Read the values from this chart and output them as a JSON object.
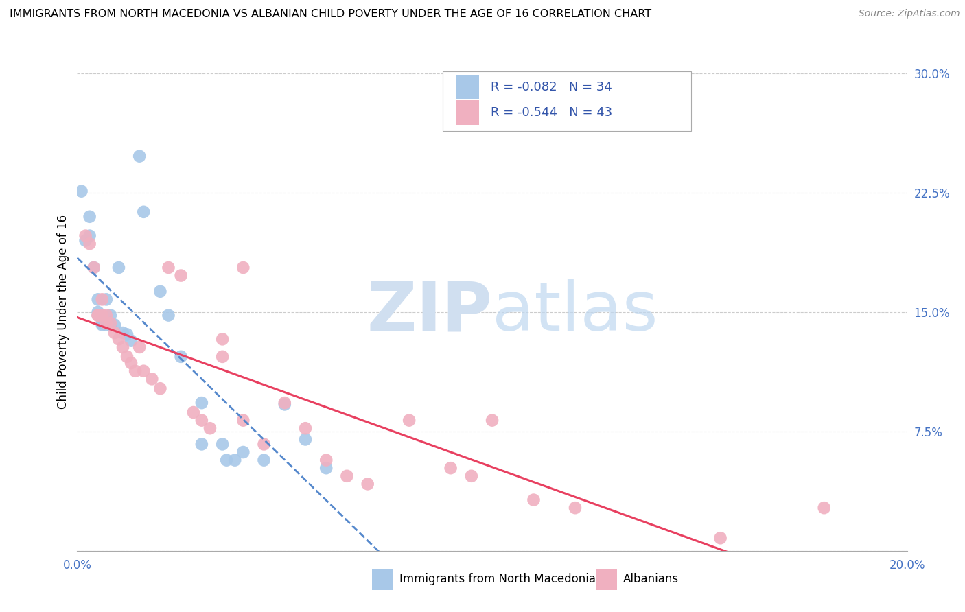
{
  "title": "IMMIGRANTS FROM NORTH MACEDONIA VS ALBANIAN CHILD POVERTY UNDER THE AGE OF 16 CORRELATION CHART",
  "source": "Source: ZipAtlas.com",
  "ylabel": "Child Poverty Under the Age of 16",
  "xmin": 0.0,
  "xmax": 0.2,
  "ymin": 0.0,
  "ymax": 0.3,
  "yticks": [
    0.0,
    0.075,
    0.15,
    0.225,
    0.3
  ],
  "ytick_labels": [
    "",
    "7.5%",
    "15.0%",
    "22.5%",
    "30.0%"
  ],
  "xticks": [
    0.0,
    0.05,
    0.1,
    0.15,
    0.2
  ],
  "xtick_labels": [
    "0.0%",
    "",
    "",
    "",
    "20.0%"
  ],
  "blue_R": "-0.082",
  "blue_N": "34",
  "pink_R": "-0.544",
  "pink_N": "43",
  "blue_color": "#a8c8e8",
  "pink_color": "#f0b0c0",
  "blue_line_color": "#5588cc",
  "pink_line_color": "#e84060",
  "tick_color": "#4472c4",
  "legend_text_color": "#3355aa",
  "watermark_color": "#d0dff0",
  "blue_points": [
    [
      0.001,
      0.226
    ],
    [
      0.002,
      0.195
    ],
    [
      0.003,
      0.198
    ],
    [
      0.003,
      0.21
    ],
    [
      0.004,
      0.178
    ],
    [
      0.005,
      0.158
    ],
    [
      0.005,
      0.15
    ],
    [
      0.005,
      0.148
    ],
    [
      0.006,
      0.143
    ],
    [
      0.006,
      0.142
    ],
    [
      0.007,
      0.158
    ],
    [
      0.007,
      0.142
    ],
    [
      0.008,
      0.142
    ],
    [
      0.008,
      0.148
    ],
    [
      0.009,
      0.142
    ],
    [
      0.01,
      0.178
    ],
    [
      0.011,
      0.137
    ],
    [
      0.012,
      0.136
    ],
    [
      0.013,
      0.132
    ],
    [
      0.015,
      0.248
    ],
    [
      0.016,
      0.213
    ],
    [
      0.02,
      0.163
    ],
    [
      0.022,
      0.148
    ],
    [
      0.025,
      0.122
    ],
    [
      0.03,
      0.093
    ],
    [
      0.03,
      0.067
    ],
    [
      0.035,
      0.067
    ],
    [
      0.036,
      0.057
    ],
    [
      0.038,
      0.057
    ],
    [
      0.04,
      0.062
    ],
    [
      0.045,
      0.057
    ],
    [
      0.05,
      0.092
    ],
    [
      0.055,
      0.07
    ],
    [
      0.06,
      0.052
    ]
  ],
  "pink_points": [
    [
      0.002,
      0.198
    ],
    [
      0.003,
      0.193
    ],
    [
      0.004,
      0.178
    ],
    [
      0.005,
      0.148
    ],
    [
      0.005,
      0.148
    ],
    [
      0.006,
      0.158
    ],
    [
      0.006,
      0.148
    ],
    [
      0.007,
      0.148
    ],
    [
      0.007,
      0.143
    ],
    [
      0.008,
      0.143
    ],
    [
      0.009,
      0.137
    ],
    [
      0.01,
      0.133
    ],
    [
      0.011,
      0.128
    ],
    [
      0.012,
      0.122
    ],
    [
      0.013,
      0.118
    ],
    [
      0.014,
      0.113
    ],
    [
      0.015,
      0.128
    ],
    [
      0.016,
      0.113
    ],
    [
      0.018,
      0.108
    ],
    [
      0.02,
      0.102
    ],
    [
      0.022,
      0.178
    ],
    [
      0.025,
      0.173
    ],
    [
      0.028,
      0.087
    ],
    [
      0.03,
      0.082
    ],
    [
      0.032,
      0.077
    ],
    [
      0.035,
      0.133
    ],
    [
      0.035,
      0.122
    ],
    [
      0.04,
      0.178
    ],
    [
      0.04,
      0.082
    ],
    [
      0.045,
      0.067
    ],
    [
      0.05,
      0.093
    ],
    [
      0.055,
      0.077
    ],
    [
      0.06,
      0.057
    ],
    [
      0.065,
      0.047
    ],
    [
      0.07,
      0.042
    ],
    [
      0.08,
      0.082
    ],
    [
      0.09,
      0.052
    ],
    [
      0.095,
      0.047
    ],
    [
      0.1,
      0.082
    ],
    [
      0.11,
      0.032
    ],
    [
      0.12,
      0.027
    ],
    [
      0.155,
      0.008
    ],
    [
      0.18,
      0.027
    ]
  ]
}
